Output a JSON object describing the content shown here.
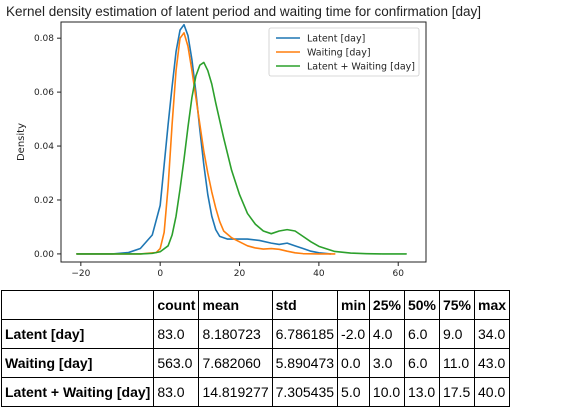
{
  "chart_data": {
    "type": "line",
    "title": "Kernel density estimation of latent period and waiting time for confirmation [day]",
    "xlabel": "",
    "ylabel": "Density",
    "xlim": [
      -25,
      67
    ],
    "ylim": [
      -0.003,
      0.086
    ],
    "xticks": [
      -20,
      0,
      20,
      40,
      60
    ],
    "yticks": [
      0.0,
      0.02,
      0.04,
      0.06,
      0.08
    ],
    "xtick_labels": [
      "−20",
      "0",
      "20",
      "40",
      "60"
    ],
    "ytick_labels": [
      "0.00",
      "0.02",
      "0.04",
      "0.06",
      "0.08"
    ],
    "grid": false,
    "legend_position": "top-right",
    "series": [
      {
        "name": "Latent [day]",
        "color": "#1f77b4",
        "x": [
          -21,
          -12,
          -8,
          -5,
          -2,
          0,
          1,
          2,
          3,
          4,
          5,
          6,
          7,
          8,
          9,
          10,
          11,
          12,
          13,
          14,
          15,
          17,
          20,
          22,
          25,
          28,
          30,
          32,
          34,
          36,
          38,
          40,
          43
        ],
        "y": [
          0,
          0,
          0.0005,
          0.002,
          0.007,
          0.018,
          0.033,
          0.048,
          0.062,
          0.075,
          0.083,
          0.085,
          0.081,
          0.072,
          0.06,
          0.046,
          0.033,
          0.022,
          0.014,
          0.009,
          0.0065,
          0.0055,
          0.0055,
          0.0055,
          0.005,
          0.004,
          0.0035,
          0.004,
          0.003,
          0.002,
          0.001,
          0.0004,
          0
        ]
      },
      {
        "name": "Waiting [day]",
        "color": "#ff7f0e",
        "x": [
          -21,
          -5,
          -1,
          0,
          1,
          2,
          3,
          4,
          5,
          6,
          7,
          8,
          9,
          10,
          11,
          12,
          13,
          14,
          15,
          16,
          18,
          20,
          22,
          24,
          26,
          28,
          30,
          32,
          34,
          36,
          40,
          44
        ],
        "y": [
          0,
          0,
          0.0005,
          0.002,
          0.008,
          0.025,
          0.048,
          0.068,
          0.08,
          0.082,
          0.077,
          0.068,
          0.058,
          0.048,
          0.038,
          0.03,
          0.023,
          0.017,
          0.012,
          0.0085,
          0.006,
          0.0045,
          0.003,
          0.0022,
          0.0018,
          0.002,
          0.0017,
          0.001,
          0.0004,
          0.0001,
          0,
          0
        ]
      },
      {
        "name": "Latent + Waiting [day]",
        "color": "#2ca02c",
        "x": [
          -21,
          -5,
          -2,
          0,
          2,
          3,
          4,
          5,
          6,
          7,
          8,
          9,
          10,
          11,
          12,
          13,
          14,
          16,
          18,
          20,
          22,
          24,
          26,
          28,
          30,
          32,
          34,
          36,
          38,
          40,
          44,
          48,
          52,
          56,
          62
        ],
        "y": [
          0,
          0,
          0.0002,
          0.0008,
          0.003,
          0.007,
          0.014,
          0.024,
          0.035,
          0.047,
          0.058,
          0.066,
          0.07,
          0.071,
          0.068,
          0.063,
          0.056,
          0.043,
          0.031,
          0.022,
          0.015,
          0.011,
          0.0085,
          0.0075,
          0.0085,
          0.009,
          0.0085,
          0.0065,
          0.0045,
          0.0028,
          0.0009,
          0.0003,
          0.0001,
          0,
          0
        ]
      }
    ]
  },
  "table": {
    "columns": [
      "",
      "count",
      "mean",
      "std",
      "min",
      "25%",
      "50%",
      "75%",
      "max"
    ],
    "rows": [
      {
        "label": "Latent [day]",
        "values": [
          "83.0",
          "8.180723",
          "6.786185",
          "-2.0",
          "4.0",
          "6.0",
          "9.0",
          "34.0"
        ]
      },
      {
        "label": "Waiting [day]",
        "values": [
          "563.0",
          "7.682060",
          "5.890473",
          "0.0",
          "3.0",
          "6.0",
          "11.0",
          "43.0"
        ]
      },
      {
        "label": "Latent + Waiting [day]",
        "values": [
          "83.0",
          "14.819277",
          "7.305435",
          "5.0",
          "10.0",
          "13.0",
          "17.5",
          "40.0"
        ]
      }
    ]
  }
}
